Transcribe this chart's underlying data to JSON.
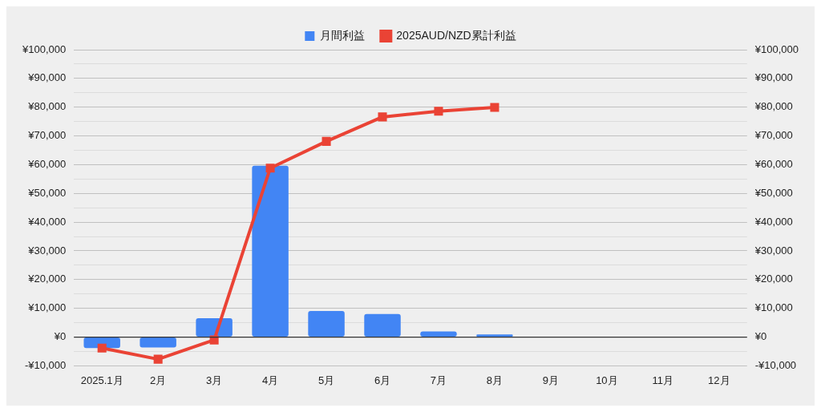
{
  "chart_data": {
    "type": "bar",
    "categories": [
      "2025.1月",
      "2月",
      "3月",
      "4月",
      "5月",
      "6月",
      "7月",
      "8月",
      "9月",
      "10月",
      "11月",
      "12月"
    ],
    "series": [
      {
        "name": "月間利益",
        "color": "#4285f4",
        "values": [
          -3800,
          -3600,
          6600,
          59600,
          9100,
          8000,
          2000,
          900,
          null,
          null,
          null,
          null
        ]
      },
      {
        "name": "2025AUD/NZD累計利益",
        "type": "line",
        "color": "#ea4335",
        "marker": "square",
        "values": [
          -3800,
          -7700,
          -1000,
          58800,
          68100,
          76600,
          78600,
          79900,
          null,
          null,
          null,
          null
        ]
      }
    ],
    "ylim": [
      -10000,
      100000
    ],
    "yticks": [
      {
        "value": -10000,
        "label": "-¥10,000"
      },
      {
        "value": -5000,
        "label": null
      },
      {
        "value": 0,
        "label": "¥0"
      },
      {
        "value": 5000,
        "label": null
      },
      {
        "value": 10000,
        "label": "¥10,000"
      },
      {
        "value": 15000,
        "label": null
      },
      {
        "value": 20000,
        "label": "¥20,000"
      },
      {
        "value": 25000,
        "label": null
      },
      {
        "value": 30000,
        "label": "¥30,000"
      },
      {
        "value": 35000,
        "label": null
      },
      {
        "value": 40000,
        "label": "¥40,000"
      },
      {
        "value": 45000,
        "label": null
      },
      {
        "value": 50000,
        "label": "¥50,000"
      },
      {
        "value": 55000,
        "label": null
      },
      {
        "value": 60000,
        "label": "¥60,000"
      },
      {
        "value": 65000,
        "label": null
      },
      {
        "value": 70000,
        "label": "¥70,000"
      },
      {
        "value": 75000,
        "label": null
      },
      {
        "value": 80000,
        "label": "¥80,000"
      },
      {
        "value": 85000,
        "label": null
      },
      {
        "value": 90000,
        "label": "¥90,000"
      },
      {
        "value": 95000,
        "label": null
      },
      {
        "value": 100000,
        "label": "¥100,000"
      }
    ],
    "y2lim": [
      -10000,
      100000
    ],
    "y2ticks": [
      {
        "value": -10000,
        "label": "-¥10,000"
      },
      {
        "value": 0,
        "label": "¥0"
      },
      {
        "value": 10000,
        "label": "¥10,000"
      },
      {
        "value": 20000,
        "label": "¥20,000"
      },
      {
        "value": 30000,
        "label": "¥30,000"
      },
      {
        "value": 40000,
        "label": "¥40,000"
      },
      {
        "value": 50000,
        "label": "¥50,000"
      },
      {
        "value": 60000,
        "label": "¥60,000"
      },
      {
        "value": 70000,
        "label": "¥70,000"
      },
      {
        "value": 80000,
        "label": "¥80,000"
      },
      {
        "value": 90000,
        "label": "¥90,000"
      },
      {
        "value": 100000,
        "label": "¥100,000"
      }
    ],
    "grid": "y",
    "legend": "top"
  }
}
